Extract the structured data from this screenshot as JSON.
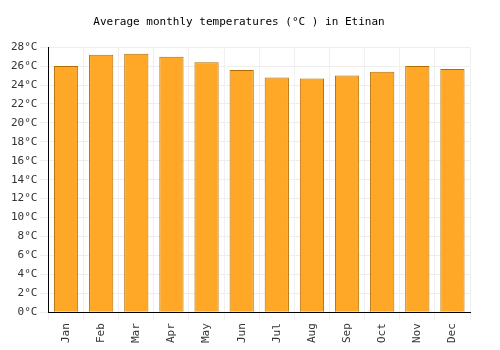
{
  "chart_data": {
    "type": "bar",
    "title": "Average monthly temperatures (°C ) in Etinan",
    "categories": [
      "Jan",
      "Feb",
      "Mar",
      "Apr",
      "May",
      "Jun",
      "Jul",
      "Aug",
      "Sep",
      "Oct",
      "Nov",
      "Dec"
    ],
    "values": [
      26.0,
      27.2,
      27.3,
      27.0,
      26.4,
      25.6,
      24.8,
      24.7,
      25.0,
      25.4,
      26.0,
      25.7
    ],
    "color": "#ffa726",
    "ylim": [
      0,
      28
    ],
    "yticks": [
      {
        "value": 0,
        "label": "0°C"
      },
      {
        "value": 2,
        "label": "2°C"
      },
      {
        "value": 4,
        "label": "4°C"
      },
      {
        "value": 6,
        "label": "6°C"
      },
      {
        "value": 8,
        "label": "8°C"
      },
      {
        "value": 10,
        "label": "10°C"
      },
      {
        "value": 12,
        "label": "12°C"
      },
      {
        "value": 14,
        "label": "14°C"
      },
      {
        "value": 16,
        "label": "16°C"
      },
      {
        "value": 18,
        "label": "18°C"
      },
      {
        "value": 20,
        "label": "20°C"
      },
      {
        "value": 22,
        "label": "22°C"
      },
      {
        "value": 24,
        "label": "24°C"
      },
      {
        "value": 26,
        "label": "26°C"
      },
      {
        "value": 28,
        "label": "28°C"
      }
    ],
    "grid": true
  }
}
